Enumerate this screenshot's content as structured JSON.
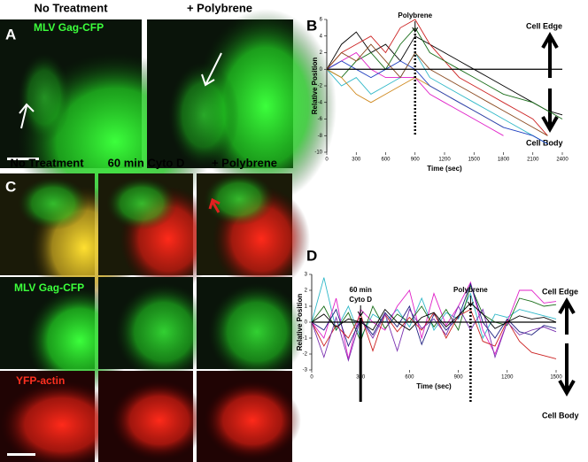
{
  "figure": {
    "labels": [
      "A",
      "B",
      "C",
      "D"
    ],
    "a_columns": [
      "No Treatment",
      "+ Polybrene"
    ],
    "a_channel": "MLV Gag-CFP",
    "c_columns": [
      "No Treatment",
      "60 min Cyto D",
      "+ Polybrene"
    ],
    "c_rows": [
      "MLV Gag-CFP",
      "YFP-actin"
    ]
  },
  "chart_data": [
    {
      "type": "line",
      "xlabel": "Time (sec)",
      "ylabel": "Relative Position",
      "x": [
        0,
        150,
        300,
        450,
        600,
        750,
        900,
        1050,
        1200,
        1350,
        1500,
        1650,
        1800,
        1950,
        2100,
        2250,
        2400
      ],
      "xlim": [
        0,
        2400
      ],
      "xticks": [
        0,
        300,
        600,
        900,
        1200,
        1500,
        1800,
        2100,
        2400
      ],
      "ylim": [
        -10,
        6
      ],
      "yticks": [
        6,
        4,
        2,
        0,
        -2,
        -4,
        -6,
        -8,
        -10
      ],
      "side_labels": [
        "Cell Edge",
        "Cell Body"
      ],
      "annotations": [
        {
          "lines": [
            "Polybrene"
          ],
          "x": 900,
          "style": "dotted"
        }
      ],
      "series": [
        {
          "color": "#000000",
          "values": [
            0,
            3,
            4.5,
            2,
            3,
            1,
            4,
            3,
            2,
            1,
            0,
            -1,
            -2,
            -3,
            -4,
            -5,
            -5.5
          ]
        },
        {
          "color": "#cc2222",
          "values": [
            0,
            2,
            3,
            4,
            2,
            5,
            6,
            3,
            1,
            -1,
            -2,
            -3,
            -4,
            -5,
            -6,
            -8,
            null
          ]
        },
        {
          "color": "#1a6e1a",
          "values": [
            0,
            -1,
            1,
            2,
            0,
            3,
            5,
            2,
            1,
            0,
            -1,
            -2,
            -3,
            -3.5,
            -4,
            -5,
            -6
          ]
        },
        {
          "color": "#e020c8",
          "values": [
            0,
            1,
            2,
            0,
            -1,
            -1,
            -1,
            -3,
            -4,
            -5,
            -6,
            -7,
            -8,
            null,
            null,
            null,
            null
          ]
        },
        {
          "color": "#30b8c8",
          "values": [
            0,
            -2,
            -1,
            -3,
            -2,
            -1,
            2,
            -1,
            -2,
            -3,
            -4,
            -5,
            -6,
            -7,
            -8,
            -9,
            null
          ]
        },
        {
          "color": "#d08a20",
          "values": [
            0,
            -1,
            -3,
            -4,
            -3,
            -2,
            -1,
            -2,
            -3,
            -4,
            -5,
            -6,
            -7,
            null,
            null,
            null,
            null
          ]
        },
        {
          "color": "#2040c0",
          "values": [
            0,
            1,
            0,
            -1,
            0,
            1,
            0,
            -2,
            -3,
            -4,
            -5,
            -6,
            -7,
            -7.5,
            -8,
            -9,
            null
          ]
        },
        {
          "color": "#8a4a20",
          "values": [
            0,
            2,
            1,
            3,
            1,
            -1,
            2,
            0,
            -1,
            -2,
            -3,
            -4,
            -5,
            -6,
            -7,
            -8,
            null
          ]
        }
      ]
    },
    {
      "type": "line",
      "xlabel": "Time (sec)",
      "ylabel": "Relative Position",
      "x": [
        0,
        75,
        150,
        225,
        300,
        375,
        450,
        525,
        600,
        675,
        750,
        825,
        900,
        975,
        1050,
        1125,
        1200,
        1275,
        1350,
        1425,
        1500
      ],
      "xlim": [
        0,
        1500
      ],
      "xticks": [
        0,
        300,
        600,
        900,
        1200,
        1500
      ],
      "ylim": [
        -3,
        3
      ],
      "yticks": [
        3,
        2,
        1,
        0,
        -1,
        -2,
        -3
      ],
      "side_labels": [
        "Cell Edge",
        "Cell Body"
      ],
      "annotations": [
        {
          "lines": [
            "60 min",
            "Cyto D"
          ],
          "x": 300,
          "style": "solid"
        },
        {
          "lines": [
            "Polybrene"
          ],
          "x": 975,
          "style": "dotted"
        }
      ],
      "series": [
        {
          "color": "#30b8c8",
          "values": [
            0,
            2.8,
            -0.5,
            1,
            -1,
            0.5,
            0,
            0.8,
            -0.3,
            1.5,
            -0.5,
            0.6,
            0.2,
            1.8,
            -1,
            0.5,
            0.3,
            0.8,
            0.6,
            0.4,
            0.2
          ]
        },
        {
          "color": "#e020c8",
          "values": [
            0,
            -1,
            1.5,
            -2.3,
            0.8,
            0,
            -0.5,
            1,
            2,
            -1,
            1.8,
            -0.2,
            1,
            2.5,
            -0.5,
            -2,
            0,
            2,
            2,
            1.2,
            1.3
          ]
        },
        {
          "color": "#1a6e1a",
          "values": [
            0,
            1,
            -0.5,
            0.6,
            -1.2,
            1,
            -0.4,
            0.5,
            0,
            1,
            -0.3,
            0.8,
            -0.5,
            2.3,
            0.5,
            0,
            -0.2,
            1.5,
            1.3,
            1,
            1.1
          ]
        },
        {
          "color": "#202080",
          "values": [
            0,
            -0.5,
            0.8,
            -1.5,
            0.2,
            -0.8,
            0.6,
            -0.3,
            1,
            -1.4,
            0.5,
            -0.5,
            0.3,
            2.4,
            0,
            -1,
            0.2,
            -0.6,
            -0.8,
            -0.2,
            -0.4
          ]
        },
        {
          "color": "#cc2222",
          "values": [
            0,
            -1.5,
            -0.2,
            -1,
            0.5,
            -1.8,
            0.5,
            -0.6,
            0.3,
            -0.5,
            0.6,
            -1,
            0.4,
            0.8,
            -1.2,
            -1.5,
            0.1,
            -1.2,
            -1.9,
            -2.1,
            -2.3
          ]
        },
        {
          "color": "#7a30b0",
          "values": [
            0,
            -2.2,
            0.3,
            -2.4,
            0.2,
            -1,
            0.5,
            -1.8,
            0.8,
            -0.4,
            0.2,
            -0.8,
            1,
            -0.5,
            0.8,
            -2.2,
            0,
            -0.8,
            -0.5,
            -0.3,
            -0.6
          ]
        },
        {
          "color": "#000000",
          "values": [
            0,
            0.5,
            -0.3,
            0.2,
            0,
            -0.5,
            0.8,
            0,
            -0.5,
            0.3,
            0.6,
            -0.3,
            0.4,
            1.2,
            0.5,
            -0.4,
            0,
            0.4,
            0.2,
            0.3,
            0
          ]
        }
      ]
    }
  ]
}
